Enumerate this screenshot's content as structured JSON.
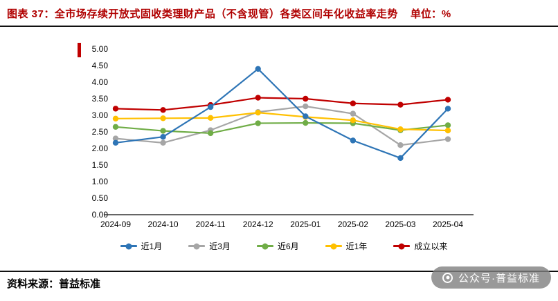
{
  "header": {
    "title": "图表 37：全市场存续开放式固收类理财产品（不含现管）各类区间年化收益率走势",
    "unit": "单位：%"
  },
  "footer": {
    "source": "资料来源：普益标准"
  },
  "watermark": {
    "text": "公众号·普益标准"
  },
  "colors": {
    "title": "#B00000",
    "accent_bar": "#C00000",
    "axis": "#333333"
  },
  "chart_data": {
    "type": "line",
    "title": "全市场存续开放式固收类理财产品（不含现管）各类区间年化收益率走势",
    "unit": "%",
    "categories": [
      "2024-09",
      "2024-10",
      "2024-11",
      "2024-12",
      "2025-01",
      "2025-02",
      "2025-03",
      "2025-04"
    ],
    "series": [
      {
        "name": "近1月",
        "color": "#2E75B6",
        "values": [
          2.17,
          2.35,
          3.25,
          4.4,
          2.97,
          2.24,
          1.71,
          3.2
        ]
      },
      {
        "name": "近3月",
        "color": "#A6A6A6",
        "values": [
          2.3,
          2.17,
          2.55,
          3.1,
          3.27,
          3.05,
          2.1,
          2.28
        ]
      },
      {
        "name": "近6月",
        "color": "#70AD47",
        "values": [
          2.65,
          2.53,
          2.46,
          2.76,
          2.77,
          2.76,
          2.55,
          2.7
        ]
      },
      {
        "name": "近1年",
        "color": "#FFC000",
        "values": [
          2.9,
          2.91,
          2.92,
          3.08,
          2.95,
          2.85,
          2.58,
          2.54
        ]
      },
      {
        "name": "成立以来",
        "color": "#C00000",
        "values": [
          3.2,
          3.16,
          3.31,
          3.53,
          3.5,
          3.36,
          3.32,
          3.47
        ]
      }
    ],
    "ylim": [
      0,
      5
    ],
    "ytick_step": 0.5,
    "ytick_decimals": 2,
    "grid": false,
    "legend_position": "bottom"
  }
}
